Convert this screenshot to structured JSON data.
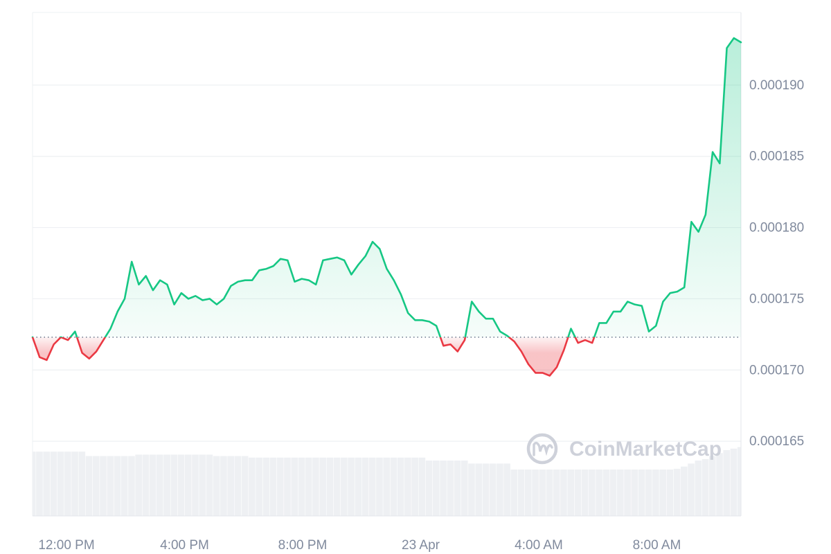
{
  "chart_data": {
    "type": "line",
    "watermark": "CoinMarketCap",
    "color_up": "#16c784",
    "color_down": "#ea3943",
    "baseline": 0.0001723,
    "grid": true,
    "xlim": [
      10.85,
      34.85
    ],
    "xticks": [
      {
        "value": 12,
        "label": "12:00 PM"
      },
      {
        "value": 16,
        "label": "4:00 PM"
      },
      {
        "value": 20,
        "label": "8:00 PM"
      },
      {
        "value": 24,
        "label": "23 Apr"
      },
      {
        "value": 28,
        "label": "4:00 AM"
      },
      {
        "value": 32,
        "label": "8:00 AM"
      }
    ],
    "ylim": [
      0.00016,
      0.000195
    ],
    "yticks": [
      {
        "value": 0.000165,
        "label": "0.000165"
      },
      {
        "value": 0.00017,
        "label": "0.000170"
      },
      {
        "value": 0.000175,
        "label": "0.000175"
      },
      {
        "value": 0.00018,
        "label": "0.000180"
      },
      {
        "value": 0.000185,
        "label": "0.000185"
      },
      {
        "value": 0.00019,
        "label": "0.000190"
      }
    ],
    "x": [
      10.85,
      11.09,
      11.33,
      11.57,
      11.81,
      12.05,
      12.29,
      12.53,
      12.77,
      13.01,
      13.25,
      13.49,
      13.73,
      13.97,
      14.21,
      14.45,
      14.69,
      14.93,
      15.17,
      15.41,
      15.65,
      15.89,
      16.13,
      16.37,
      16.61,
      16.85,
      17.09,
      17.33,
      17.57,
      17.81,
      18.05,
      18.29,
      18.53,
      18.77,
      19.01,
      19.25,
      19.49,
      19.73,
      19.97,
      20.21,
      20.45,
      20.69,
      20.93,
      21.17,
      21.41,
      21.65,
      21.89,
      22.13,
      22.37,
      22.61,
      22.85,
      23.09,
      23.33,
      23.57,
      23.81,
      24.05,
      24.29,
      24.53,
      24.77,
      25.01,
      25.25,
      25.49,
      25.73,
      25.97,
      26.21,
      26.45,
      26.69,
      26.93,
      27.17,
      27.41,
      27.65,
      27.89,
      28.13,
      28.37,
      28.61,
      28.85,
      29.09,
      29.33,
      29.57,
      29.81,
      30.05,
      30.29,
      30.53,
      30.77,
      31.01,
      31.25,
      31.49,
      31.73,
      31.97,
      32.21,
      32.45,
      32.69,
      32.93,
      33.17,
      33.41,
      33.65,
      33.89,
      34.13,
      34.37,
      34.61,
      34.85
    ],
    "values": [
      0.0001723,
      0.0001709,
      0.0001707,
      0.0001718,
      0.0001723,
      0.0001721,
      0.0001727,
      0.0001712,
      0.0001708,
      0.0001713,
      0.0001721,
      0.0001729,
      0.0001741,
      0.000175,
      0.0001776,
      0.000176,
      0.0001766,
      0.0001756,
      0.0001763,
      0.000176,
      0.0001746,
      0.0001754,
      0.000175,
      0.0001752,
      0.0001749,
      0.000175,
      0.0001746,
      0.000175,
      0.0001759,
      0.0001762,
      0.0001763,
      0.0001763,
      0.000177,
      0.0001771,
      0.0001773,
      0.0001778,
      0.0001777,
      0.0001762,
      0.0001764,
      0.0001763,
      0.000176,
      0.0001777,
      0.0001778,
      0.0001779,
      0.0001777,
      0.0001767,
      0.0001774,
      0.000178,
      0.000179,
      0.0001785,
      0.0001771,
      0.0001763,
      0.0001753,
      0.000174,
      0.0001735,
      0.0001735,
      0.0001734,
      0.0001731,
      0.0001717,
      0.0001718,
      0.0001713,
      0.0001721,
      0.0001748,
      0.0001741,
      0.0001736,
      0.0001736,
      0.0001727,
      0.0001724,
      0.000172,
      0.0001713,
      0.0001704,
      0.0001698,
      0.0001698,
      0.0001696,
      0.0001702,
      0.0001714,
      0.0001729,
      0.0001719,
      0.0001721,
      0.0001719,
      0.0001733,
      0.0001733,
      0.0001741,
      0.0001741,
      0.0001748,
      0.0001746,
      0.0001745,
      0.0001727,
      0.0001731,
      0.0001748,
      0.0001754,
      0.0001755,
      0.0001758,
      0.0001804,
      0.0001797,
      0.0001809,
      0.0001853,
      0.0001845,
      0.0001926,
      0.0001933,
      0.000193
    ],
    "volume": {
      "color": "#eef0f3",
      "ylim": [
        0,
        100
      ],
      "values": [
        86,
        86,
        86,
        86,
        86,
        86,
        86,
        86,
        80,
        80,
        80,
        80,
        80,
        80,
        80,
        82,
        82,
        82,
        82,
        82,
        82,
        82,
        82,
        82,
        82,
        82,
        80,
        80,
        80,
        80,
        80,
        78,
        78,
        78,
        78,
        78,
        78,
        78,
        78,
        78,
        78,
        78,
        78,
        78,
        78,
        78,
        78,
        78,
        78,
        78,
        78,
        78,
        78,
        78,
        78,
        78,
        74,
        74,
        74,
        74,
        74,
        74,
        70,
        70,
        70,
        70,
        70,
        70,
        62,
        62,
        62,
        62,
        62,
        62,
        62,
        62,
        62,
        62,
        62,
        62,
        62,
        62,
        62,
        62,
        62,
        62,
        62,
        62,
        62,
        62,
        62,
        63,
        66,
        70,
        74,
        76,
        80,
        84,
        88,
        90,
        92
      ]
    }
  }
}
